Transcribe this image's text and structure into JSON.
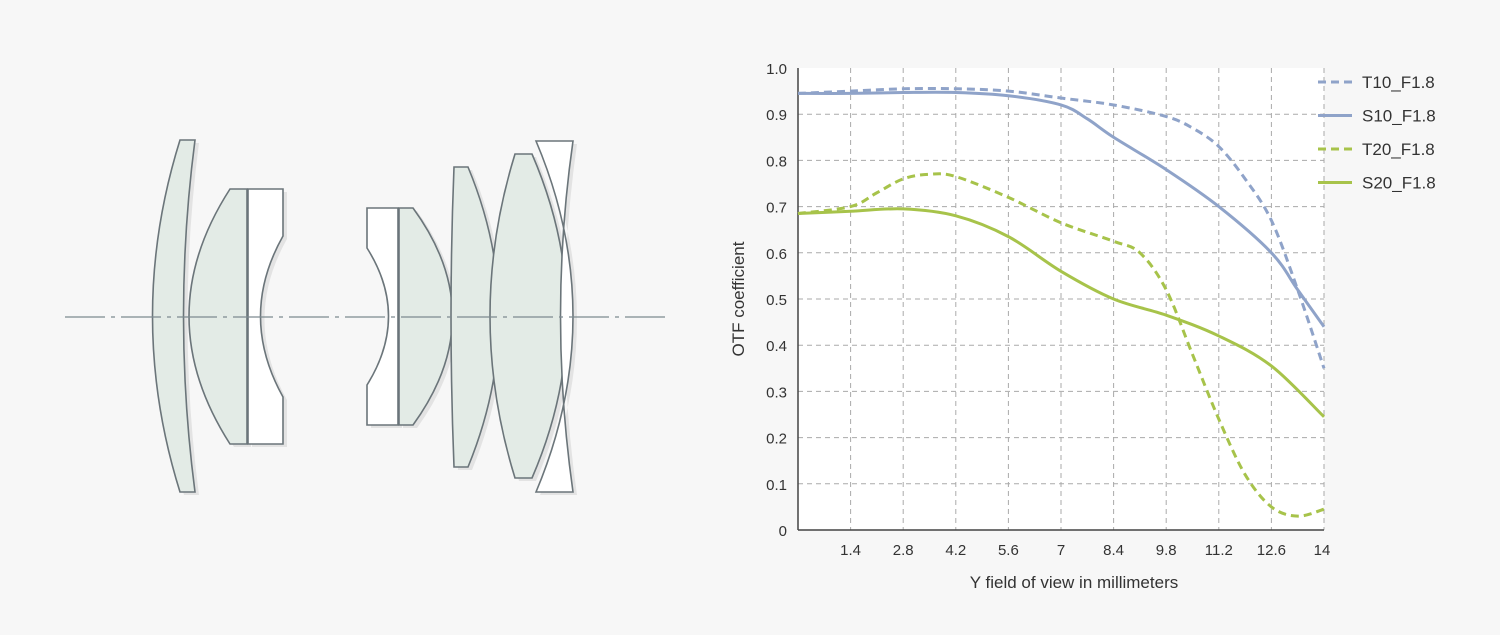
{
  "colors": {
    "blue": "#8fa3c9",
    "green": "#a7c34a",
    "lens_fill": "#e3ebe6",
    "lens_stroke": "#6b757a"
  },
  "chart_data": {
    "type": "line",
    "title": "",
    "xlabel": "Y field of view in millimeters",
    "ylabel": "OTF coefficient",
    "xlim": [
      0,
      14
    ],
    "ylim": [
      0,
      1.0
    ],
    "xticks": [
      "1.4",
      "2.8",
      "4.2",
      "5.6",
      "7",
      "8.4",
      "9.8",
      "11.2",
      "12.6",
      "14"
    ],
    "xtick_values": [
      1.4,
      2.8,
      4.2,
      5.6,
      7,
      8.4,
      9.8,
      11.2,
      12.6,
      14
    ],
    "yticks": [
      "0",
      "0.1",
      "0.2",
      "0.3",
      "0.4",
      "0.5",
      "0.6",
      "0.7",
      "0.8",
      "0.9",
      "1.0"
    ],
    "ytick_values": [
      0,
      0.1,
      0.2,
      0.3,
      0.4,
      0.5,
      0.6,
      0.7,
      0.8,
      0.9,
      1.0
    ],
    "grid": true,
    "legend_position": "right",
    "series": [
      {
        "name": "T10_F1.8",
        "color": "#8fa3c9",
        "dash": true,
        "x": [
          0,
          1.4,
          2.8,
          4.2,
          5.6,
          7,
          8.4,
          9.8,
          10.5,
          11.2,
          11.9,
          12.6,
          13.3,
          14
        ],
        "y": [
          0.945,
          0.95,
          0.955,
          0.955,
          0.95,
          0.935,
          0.92,
          0.895,
          0.87,
          0.83,
          0.76,
          0.67,
          0.52,
          0.35
        ]
      },
      {
        "name": "S10_F1.8",
        "color": "#8fa3c9",
        "dash": false,
        "x": [
          0,
          1.4,
          2.8,
          4.2,
          5.6,
          7,
          7.7,
          8.4,
          9.8,
          11.2,
          12.6,
          13.3,
          14
        ],
        "y": [
          0.945,
          0.945,
          0.947,
          0.947,
          0.94,
          0.92,
          0.89,
          0.85,
          0.78,
          0.7,
          0.6,
          0.52,
          0.44
        ]
      },
      {
        "name": "T20_F1.8",
        "color": "#a7c34a",
        "dash": true,
        "x": [
          0,
          1.4,
          2.1,
          2.8,
          3.5,
          4.2,
          5.6,
          7,
          8.4,
          9.1,
          9.8,
          10.5,
          11.2,
          11.9,
          12.6,
          13.3,
          14
        ],
        "y": [
          0.685,
          0.7,
          0.73,
          0.76,
          0.77,
          0.765,
          0.72,
          0.665,
          0.625,
          0.6,
          0.52,
          0.38,
          0.24,
          0.12,
          0.05,
          0.03,
          0.045
        ]
      },
      {
        "name": "S20_F1.8",
        "color": "#a7c34a",
        "dash": false,
        "x": [
          0,
          1.4,
          2.8,
          4.2,
          5.6,
          7,
          8.4,
          9.8,
          11.2,
          12.6,
          14
        ],
        "y": [
          0.685,
          0.69,
          0.695,
          0.68,
          0.635,
          0.56,
          0.5,
          0.465,
          0.42,
          0.355,
          0.245
        ]
      }
    ]
  }
}
